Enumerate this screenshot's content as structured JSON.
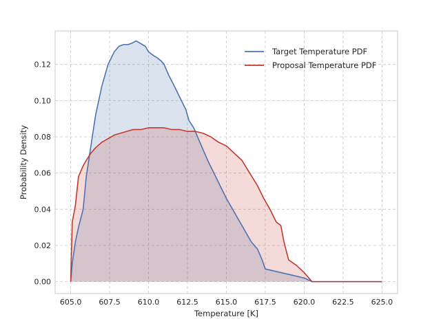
{
  "chart_data": {
    "type": "area",
    "title": "",
    "xlabel": "Temperature [K]",
    "ylabel": "Probability Density",
    "xlim": [
      604.0,
      626.0
    ],
    "ylim": [
      -0.0066,
      0.1385
    ],
    "x_ticks": [
      605.0,
      607.5,
      610.0,
      612.5,
      615.0,
      617.5,
      620.0,
      622.5,
      625.0
    ],
    "x_tick_labels": [
      "605.0",
      "607.5",
      "610.0",
      "612.5",
      "615.0",
      "617.5",
      "620.0",
      "622.5",
      "625.0"
    ],
    "y_ticks": [
      0.0,
      0.02,
      0.04,
      0.06,
      0.08,
      0.1,
      0.12
    ],
    "y_tick_labels": [
      "0.00",
      "0.02",
      "0.04",
      "0.06",
      "0.08",
      "0.10",
      "0.12"
    ],
    "grid": true,
    "legend_position": "top-right",
    "series": [
      {
        "name": "Target Temperature PDF",
        "color": "#4c72b0",
        "fill": "#4c72b0",
        "x": [
          605.0,
          605.1,
          605.3,
          605.5,
          605.8,
          606.0,
          606.3,
          606.6,
          607.0,
          607.4,
          607.8,
          608.1,
          608.4,
          608.7,
          609.0,
          609.2,
          609.4,
          609.6,
          609.8,
          610.0,
          610.3,
          610.5,
          610.8,
          611.0,
          611.3,
          611.6,
          612.0,
          612.4,
          612.6,
          612.9,
          613.2,
          613.5,
          613.8,
          614.2,
          614.6,
          615.0,
          615.4,
          615.8,
          616.2,
          616.6,
          617.0,
          617.3,
          617.5,
          618.0,
          619.0,
          620.0,
          620.5,
          622.0,
          625.0
        ],
        "values": [
          0.0,
          0.01,
          0.022,
          0.03,
          0.04,
          0.058,
          0.075,
          0.092,
          0.108,
          0.12,
          0.127,
          0.13,
          0.131,
          0.131,
          0.132,
          0.133,
          0.132,
          0.131,
          0.13,
          0.127,
          0.125,
          0.124,
          0.122,
          0.12,
          0.114,
          0.109,
          0.102,
          0.095,
          0.089,
          0.085,
          0.079,
          0.073,
          0.067,
          0.06,
          0.053,
          0.046,
          0.04,
          0.034,
          0.028,
          0.022,
          0.018,
          0.012,
          0.007,
          0.006,
          0.004,
          0.002,
          0.0,
          0.0,
          0.0
        ]
      },
      {
        "name": "Proposal Temperature PDF",
        "color": "#c0392b",
        "fill": "#dd8452",
        "x": [
          605.0,
          605.1,
          605.3,
          605.5,
          605.8,
          606.0,
          606.3,
          606.6,
          607.0,
          607.4,
          607.8,
          608.2,
          608.6,
          609.0,
          609.5,
          610.0,
          610.5,
          611.0,
          611.5,
          612.0,
          612.5,
          613.0,
          613.5,
          614.0,
          614.5,
          615.0,
          615.5,
          616.0,
          616.5,
          617.0,
          617.4,
          617.8,
          618.2,
          618.5,
          618.7,
          619.0,
          619.5,
          620.0,
          620.5,
          622.0,
          625.0
        ],
        "values": [
          0.0,
          0.033,
          0.042,
          0.058,
          0.064,
          0.067,
          0.071,
          0.074,
          0.077,
          0.079,
          0.081,
          0.082,
          0.083,
          0.084,
          0.084,
          0.085,
          0.085,
          0.085,
          0.084,
          0.084,
          0.083,
          0.083,
          0.082,
          0.08,
          0.077,
          0.075,
          0.071,
          0.067,
          0.06,
          0.053,
          0.046,
          0.04,
          0.033,
          0.031,
          0.022,
          0.012,
          0.009,
          0.005,
          0.0,
          0.0,
          0.0
        ]
      }
    ]
  },
  "colors": {
    "grid": "#c8c8c8",
    "axes_border": "#c8c8c8",
    "background": "#ffffff"
  }
}
